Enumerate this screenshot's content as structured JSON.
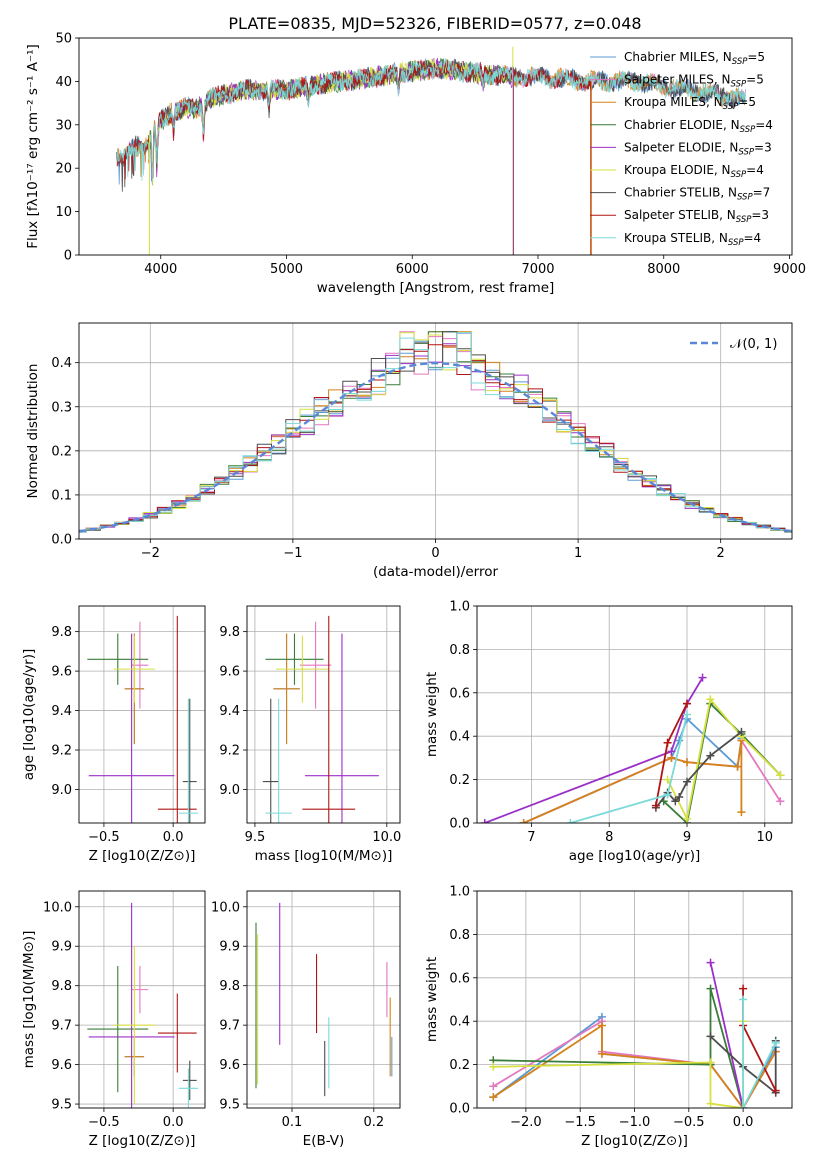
{
  "figure": {
    "title": "PLATE=0835, MJD=52326, FIBERID=0577, z=0.048"
  },
  "colors": [
    "#5b9bd5",
    "#e377c2",
    "#d4821a",
    "#3a7d3a",
    "#9b30c8",
    "#d7e040",
    "#4d4d4d",
    "#b01515",
    "#7ad9d9"
  ],
  "chart_data": [
    {
      "id": "spectrum",
      "type": "line",
      "title": "PLATE=0835, MJD=52326, FIBERID=0577, z=0.048",
      "xlabel": "wavelength [Angstrom, rest frame]",
      "ylabel": "Flux [fλ10⁻¹⁷ erg cm⁻² s⁻¹ A⁻¹]",
      "xlim": [
        3350,
        9020
      ],
      "ylim": [
        0,
        50
      ],
      "xticks": [
        4000,
        5000,
        6000,
        7000,
        8000,
        9000
      ],
      "yticks": [
        0,
        10,
        20,
        30,
        40,
        50
      ],
      "legend": "right",
      "grid": false,
      "series": [
        {
          "name": "Chabrier MILES, N_SSP=5",
          "x_range": [
            3650,
            8650
          ]
        },
        {
          "name": "Salpeter MILES, N_SSP=5",
          "x_range": [
            3650,
            8650
          ]
        },
        {
          "name": "Kroupa MILES, N_SSP=5",
          "x_range": [
            3650,
            8650
          ]
        },
        {
          "name": "Chabrier ELODIE, N_SSP=4",
          "x_range": [
            3900,
            6800
          ]
        },
        {
          "name": "Salpeter ELODIE, N_SSP=3",
          "x_range": [
            3900,
            6800
          ]
        },
        {
          "name": "Kroupa ELODIE, N_SSP=4",
          "x_range": [
            3900,
            6800
          ]
        },
        {
          "name": "Chabrier STELIB, N_SSP=7",
          "x_range": [
            3650,
            8650
          ]
        },
        {
          "name": "Salpeter STELIB, N_SSP=3",
          "x_range": [
            3650,
            7420
          ]
        },
        {
          "name": "Kroupa STELIB, N_SSP=4",
          "x_range": [
            3650,
            8650
          ]
        }
      ],
      "continuum_anchors": {
        "x": [
          3650,
          3700,
          3800,
          3900,
          3950,
          4000,
          4100,
          4200,
          4300,
          4400,
          4500,
          4700,
          5000,
          5200,
          5400,
          5600,
          5900,
          6200,
          6500,
          6800,
          7000,
          7400,
          7800,
          8200,
          8600,
          8650
        ],
        "y": [
          23,
          22,
          25,
          26,
          29,
          31,
          33,
          34,
          34,
          36,
          37,
          38,
          38,
          39,
          40,
          40.5,
          42,
          43,
          42,
          41,
          41,
          40,
          40,
          38,
          36,
          36
        ]
      }
    },
    {
      "id": "residuals",
      "type": "line",
      "xlabel": "(data-model)/error",
      "ylabel": "Normed distribution",
      "xlim": [
        -2.5,
        2.5
      ],
      "ylim": [
        0,
        0.49
      ],
      "xticks": [
        -2,
        -1,
        0,
        1,
        2
      ],
      "yticks": [
        0.0,
        0.1,
        0.2,
        0.3,
        0.4
      ],
      "legend": "top-right",
      "legend_label": "𝒩(0, 1)",
      "grid": true,
      "hist_bin_width": 0.1,
      "reference_curve": "standard normal, mean 0, sigma 1"
    },
    {
      "id": "age-vs-Z",
      "type": "scatter",
      "xlabel": "Z [log10(Z/Z⊙)]",
      "ylabel": "age  [log10(age/yr)]",
      "xlim": [
        -0.68,
        0.23
      ],
      "ylim": [
        8.83,
        9.93
      ],
      "xticks": [
        -0.5,
        0.0
      ],
      "yticks": [
        9.0,
        9.2,
        9.4,
        9.6,
        9.8
      ],
      "grid": true,
      "points": [
        {
          "series": 0,
          "x": -0.28,
          "y": 9.51,
          "xerr": 0.07,
          "yerr": 0.28
        },
        {
          "series": 1,
          "x": -0.24,
          "y": 9.63,
          "xerr": 0.06,
          "yerr": 0.22
        },
        {
          "series": 2,
          "x": -0.28,
          "y": 9.51,
          "xerr": 0.07,
          "yerr": 0.28
        },
        {
          "series": 3,
          "x": -0.4,
          "y": 9.66,
          "xerr": 0.22,
          "yerr": 0.13
        },
        {
          "series": 4,
          "x": -0.3,
          "y": 9.07,
          "xerr": 0.31,
          "yerr": 0.72
        },
        {
          "series": 5,
          "x": -0.28,
          "y": 9.61,
          "xerr": 0.15,
          "yerr": 0.17
        },
        {
          "series": 6,
          "x": 0.12,
          "y": 9.04,
          "xerr": 0.05,
          "yerr": 0.42
        },
        {
          "series": 7,
          "x": 0.03,
          "y": 8.9,
          "xerr": 0.14,
          "yerr": 0.98
        },
        {
          "series": 8,
          "x": 0.11,
          "y": 8.88,
          "xerr": 0.07,
          "yerr": 0.58
        }
      ]
    },
    {
      "id": "age-vs-mass",
      "type": "scatter",
      "xlabel": "mass [log10(M/M⊙)]",
      "ylabel": "",
      "xlim": [
        9.47,
        10.05
      ],
      "ylim": [
        8.83,
        9.93
      ],
      "xticks": [
        9.5,
        10.0
      ],
      "yticks": [
        9.0,
        9.2,
        9.4,
        9.6,
        9.8
      ],
      "grid": true,
      "points": [
        {
          "series": 0,
          "x": 9.62,
          "y": 9.51,
          "xerr": 0.05,
          "yerr": 0.28
        },
        {
          "series": 1,
          "x": 9.73,
          "y": 9.63,
          "xerr": 0.06,
          "yerr": 0.22
        },
        {
          "series": 2,
          "x": 9.62,
          "y": 9.51,
          "xerr": 0.05,
          "yerr": 0.28
        },
        {
          "series": 3,
          "x": 9.65,
          "y": 9.66,
          "xerr": 0.11,
          "yerr": 0.13
        },
        {
          "series": 4,
          "x": 9.83,
          "y": 9.07,
          "xerr": 0.14,
          "yerr": 0.72
        },
        {
          "series": 5,
          "x": 9.68,
          "y": 9.61,
          "xerr": 0.1,
          "yerr": 0.17
        },
        {
          "series": 6,
          "x": 9.56,
          "y": 9.04,
          "xerr": 0.03,
          "yerr": 0.42
        },
        {
          "series": 7,
          "x": 9.78,
          "y": 8.9,
          "xerr": 0.1,
          "yerr": 0.98
        },
        {
          "series": 8,
          "x": 9.59,
          "y": 8.88,
          "xerr": 0.05,
          "yerr": 0.58
        }
      ]
    },
    {
      "id": "weight-vs-age",
      "type": "line",
      "xlabel": "age  [log10(age/yr)]",
      "ylabel": "mass weight",
      "xlim": [
        6.3,
        10.35
      ],
      "ylim": [
        0,
        1.0
      ],
      "xticks": [
        7,
        8,
        9,
        10
      ],
      "yticks": [
        0.0,
        0.2,
        0.4,
        0.6,
        0.8,
        1.0
      ],
      "grid": true,
      "series": [
        {
          "series": 0,
          "x": [
            6.9,
            8.8,
            8.9,
            9.0,
            9.65,
            9.7
          ],
          "y": [
            0.0,
            0.3,
            0.38,
            0.48,
            0.26,
            0.39
          ]
        },
        {
          "series": 1,
          "x": [
            6.9,
            8.8,
            9.0,
            9.65,
            9.7,
            10.2
          ],
          "y": [
            0.0,
            0.3,
            0.28,
            0.26,
            0.38,
            0.1
          ]
        },
        {
          "series": 2,
          "x": [
            6.9,
            8.8,
            9.0,
            9.65,
            9.7,
            9.7
          ],
          "y": [
            0.0,
            0.3,
            0.28,
            0.26,
            0.38,
            0.05
          ]
        },
        {
          "series": 3,
          "x": [
            8.7,
            9.0,
            9.3,
            9.7,
            10.2
          ],
          "y": [
            0.1,
            0.0,
            0.55,
            0.41,
            0.22
          ]
        },
        {
          "series": 4,
          "x": [
            6.4,
            8.8,
            9.0,
            9.2
          ],
          "y": [
            0.0,
            0.33,
            0.55,
            0.67
          ]
        },
        {
          "series": 5,
          "x": [
            8.75,
            9.0,
            9.3,
            9.7,
            10.2
          ],
          "y": [
            0.2,
            0.02,
            0.57,
            0.4,
            0.22
          ]
        },
        {
          "series": 6,
          "x": [
            8.6,
            8.75,
            8.85,
            8.9,
            9.0,
            9.3,
            9.7
          ],
          "y": [
            0.07,
            0.14,
            0.1,
            0.12,
            0.19,
            0.31,
            0.42
          ]
        },
        {
          "series": 7,
          "x": [
            8.6,
            8.75,
            9.0
          ],
          "y": [
            0.08,
            0.37,
            0.55
          ]
        },
        {
          "series": 8,
          "x": [
            7.5,
            8.75,
            9.0
          ],
          "y": [
            0.0,
            0.13,
            0.5
          ]
        }
      ]
    },
    {
      "id": "mass-vs-Z",
      "type": "scatter",
      "xlabel": "Z [log10(Z/Z⊙)]",
      "ylabel": "mass [log10(M/M⊙)]",
      "xlim": [
        -0.68,
        0.23
      ],
      "ylim": [
        9.49,
        10.04
      ],
      "xticks": [
        -0.5,
        0.0
      ],
      "yticks": [
        9.5,
        9.6,
        9.7,
        9.8,
        9.9,
        10.0
      ],
      "grid": true,
      "points": [
        {
          "series": 0,
          "x": -0.28,
          "y": 9.62,
          "xerr": 0.07,
          "yerr": 0.05
        },
        {
          "series": 1,
          "x": -0.24,
          "y": 9.79,
          "xerr": 0.06,
          "yerr": 0.06
        },
        {
          "series": 2,
          "x": -0.28,
          "y": 9.62,
          "xerr": 0.07,
          "yerr": 0.05
        },
        {
          "series": 3,
          "x": -0.4,
          "y": 9.69,
          "xerr": 0.22,
          "yerr": 0.16
        },
        {
          "series": 4,
          "x": -0.3,
          "y": 9.67,
          "xerr": 0.31,
          "yerr": 0.34
        },
        {
          "series": 5,
          "x": -0.28,
          "y": 9.7,
          "xerr": 0.15,
          "yerr": 0.2
        },
        {
          "series": 6,
          "x": 0.12,
          "y": 9.56,
          "xerr": 0.05,
          "yerr": 0.05
        },
        {
          "series": 7,
          "x": 0.03,
          "y": 9.68,
          "xerr": 0.14,
          "yerr": 0.1
        },
        {
          "series": 8,
          "x": 0.11,
          "y": 9.54,
          "xerr": 0.07,
          "yerr": 0.05
        }
      ]
    },
    {
      "id": "mass-vs-EBV",
      "type": "scatter",
      "xlabel": "E(B-V)",
      "ylabel": "",
      "xlim": [
        0.045,
        0.232
      ],
      "ylim": [
        9.49,
        10.04
      ],
      "xticks": [
        0.1,
        0.2
      ],
      "yticks": [
        9.5,
        9.6,
        9.7,
        9.8,
        9.9,
        10.0
      ],
      "grid": true,
      "points": [
        {
          "series": 0,
          "x": 0.222,
          "y": 9.62,
          "yerr": 0.05
        },
        {
          "series": 1,
          "x": 0.216,
          "y": 9.79,
          "yerr": 0.07
        },
        {
          "series": 2,
          "x": 0.22,
          "y": 9.67,
          "yerr": 0.1
        },
        {
          "series": 3,
          "x": 0.056,
          "y": 9.75,
          "yerr": 0.21
        },
        {
          "series": 4,
          "x": 0.085,
          "y": 9.83,
          "yerr": 0.18
        },
        {
          "series": 5,
          "x": 0.058,
          "y": 9.74,
          "yerr": 0.19
        },
        {
          "series": 6,
          "x": 0.14,
          "y": 9.59,
          "yerr": 0.07
        },
        {
          "series": 7,
          "x": 0.13,
          "y": 9.78,
          "yerr": 0.1
        },
        {
          "series": 8,
          "x": 0.145,
          "y": 9.63,
          "yerr": 0.09
        }
      ]
    },
    {
      "id": "weight-vs-Z",
      "type": "line",
      "xlabel": "Z [log10(Z/Z⊙)]",
      "ylabel": "mass weight",
      "xlim": [
        -2.45,
        0.45
      ],
      "ylim": [
        0,
        1.0
      ],
      "xticks": [
        -2.0,
        -1.5,
        -1.0,
        -0.5,
        0.0
      ],
      "yticks": [
        0.0,
        0.2,
        0.4,
        0.6,
        0.8,
        1.0
      ],
      "grid": true,
      "series": [
        {
          "series": 0,
          "x": [
            -2.3,
            -1.3,
            -1.3,
            -0.3,
            0.0,
            0.3
          ],
          "y": [
            0.05,
            0.42,
            0.25,
            0.2,
            0.0,
            0.28
          ]
        },
        {
          "series": 1,
          "x": [
            -2.3,
            -1.3,
            -1.3,
            -0.3,
            0.0,
            0.3
          ],
          "y": [
            0.1,
            0.4,
            0.26,
            0.2,
            0.0,
            0.26
          ]
        },
        {
          "series": 2,
          "x": [
            -2.3,
            -1.3,
            -1.3,
            -0.3,
            0.0,
            0.3
          ],
          "y": [
            0.05,
            0.38,
            0.25,
            0.2,
            0.0,
            0.26
          ]
        },
        {
          "series": 3,
          "x": [
            -2.3,
            -0.3,
            -0.3,
            0.0
          ],
          "y": [
            0.22,
            0.2,
            0.55,
            0.0
          ]
        },
        {
          "series": 4,
          "x": [
            -0.3,
            0.0
          ],
          "y": [
            0.67,
            0.0
          ]
        },
        {
          "series": 5,
          "x": [
            -2.3,
            -0.3,
            -0.3,
            0.0,
            0.0
          ],
          "y": [
            0.19,
            0.21,
            0.02,
            0.0,
            0.4
          ]
        },
        {
          "series": 6,
          "x": [
            -0.3,
            0.0,
            0.3,
            0.3
          ],
          "y": [
            0.33,
            0.19,
            0.07,
            0.31
          ]
        },
        {
          "series": 7,
          "x": [
            0.0,
            0.0,
            0.3
          ],
          "y": [
            0.55,
            0.38,
            0.08
          ]
        },
        {
          "series": 8,
          "x": [
            0.0,
            0.0,
            0.3
          ],
          "y": [
            0.5,
            0.0,
            0.3
          ]
        }
      ]
    }
  ]
}
